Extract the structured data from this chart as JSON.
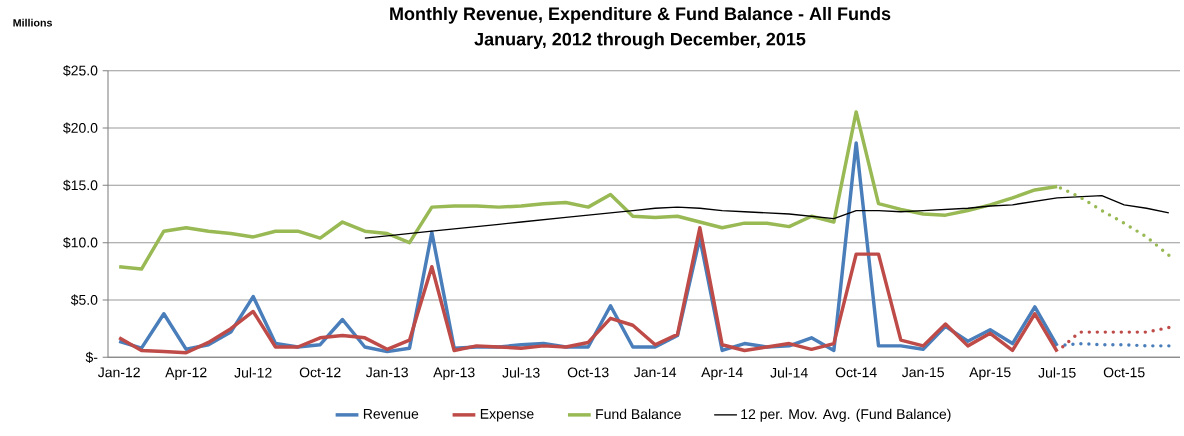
{
  "chart_data": {
    "type": "line",
    "title": "Monthly Revenue, Expenditure & Fund Balance - All Funds",
    "subtitle": "January, 2012 through December, 2015",
    "annotations": [
      "Millions"
    ],
    "categories": [
      "Jan-12",
      null,
      null,
      "Apr-12",
      null,
      null,
      "Jul-12",
      null,
      null,
      "Oct-12",
      null,
      null,
      "Jan-13",
      null,
      null,
      "Apr-13",
      null,
      null,
      "Jul-13",
      null,
      null,
      "Oct-13",
      null,
      null,
      "Jan-14",
      null,
      null,
      "Apr-14",
      null,
      null,
      "Jul-14",
      null,
      null,
      "Oct-14",
      null,
      null,
      "Jan-15",
      null,
      null,
      "Apr-15",
      null,
      null,
      "Jul-15",
      null,
      null,
      "Oct-15",
      null,
      null
    ],
    "series": [
      {
        "name": "Revenue",
        "color": "#4a7ebb",
        "values": [
          1.4,
          0.8,
          3.8,
          0.7,
          1.1,
          2.2,
          5.3,
          1.2,
          0.9,
          1.1,
          3.3,
          0.9,
          0.5,
          0.8,
          10.9,
          0.8,
          0.9,
          0.9,
          1.1,
          1.2,
          0.9,
          0.9,
          4.5,
          0.9,
          0.9,
          1.9,
          10.4,
          0.6,
          1.2,
          0.9,
          1.0,
          1.7,
          0.6,
          18.7,
          1.0,
          1.0,
          0.7,
          2.7,
          1.4,
          2.4,
          1.2,
          4.4,
          1.0,
          null,
          null,
          null,
          null,
          null
        ]
      },
      {
        "name": "Expense",
        "color": "#be4b48",
        "values": [
          1.7,
          0.6,
          0.5,
          0.4,
          1.3,
          2.5,
          4.0,
          0.9,
          0.9,
          1.7,
          1.9,
          1.7,
          0.7,
          1.5,
          7.9,
          0.6,
          1.0,
          0.9,
          0.8,
          1.0,
          0.9,
          1.3,
          3.4,
          2.8,
          1.1,
          2.0,
          11.3,
          1.1,
          0.6,
          0.9,
          1.2,
          0.7,
          1.2,
          9.0,
          9.0,
          1.5,
          1.0,
          2.9,
          1.0,
          2.1,
          0.6,
          3.8,
          0.5,
          null,
          null,
          null,
          null,
          null
        ]
      },
      {
        "name": "Fund Balance",
        "color": "#98b954",
        "values": [
          7.9,
          7.7,
          11.0,
          11.3,
          11.0,
          10.8,
          10.5,
          11.0,
          11.0,
          10.4,
          11.8,
          11.0,
          10.8,
          10.0,
          13.1,
          13.2,
          13.2,
          13.1,
          13.2,
          13.4,
          13.5,
          13.1,
          14.2,
          12.3,
          12.2,
          12.3,
          11.8,
          11.3,
          11.7,
          11.7,
          11.4,
          12.3,
          11.8,
          21.4,
          13.4,
          12.9,
          12.5,
          12.4,
          12.8,
          13.3,
          13.9,
          14.6,
          14.9,
          null,
          null,
          null,
          null,
          null
        ]
      },
      {
        "name": "12 per. Mov. Avg. (Fund Balance)",
        "type": "line",
        "color": "#000000",
        "values": [
          null,
          null,
          null,
          null,
          null,
          null,
          null,
          null,
          null,
          null,
          null,
          10.4,
          10.6,
          10.8,
          11.0,
          11.2,
          11.4,
          11.6,
          11.8,
          12.0,
          12.2,
          12.4,
          12.6,
          12.8,
          13.0,
          13.1,
          13.0,
          12.8,
          12.7,
          12.6,
          12.5,
          12.3,
          12.1,
          12.8,
          12.8,
          12.7,
          12.8,
          12.9,
          13.0,
          13.2,
          13.3,
          13.6,
          13.9,
          14.0,
          14.1,
          13.3,
          13.0,
          12.6
        ]
      },
      {
        "color": "#4a7ebb",
        "line_style": "dotted",
        "values": [
          null,
          null,
          null,
          null,
          null,
          null,
          null,
          null,
          null,
          null,
          null,
          null,
          null,
          null,
          null,
          null,
          null,
          null,
          null,
          null,
          null,
          null,
          null,
          null,
          null,
          null,
          null,
          null,
          null,
          null,
          null,
          null,
          null,
          null,
          null,
          null,
          null,
          null,
          null,
          null,
          null,
          null,
          1.0,
          1.2,
          1.1,
          1.1,
          1.0,
          1.0
        ]
      },
      {
        "color": "#be4b48",
        "line_style": "dotted",
        "values": [
          null,
          null,
          null,
          null,
          null,
          null,
          null,
          null,
          null,
          null,
          null,
          null,
          null,
          null,
          null,
          null,
          null,
          null,
          null,
          null,
          null,
          null,
          null,
          null,
          null,
          null,
          null,
          null,
          null,
          null,
          null,
          null,
          null,
          null,
          null,
          null,
          null,
          null,
          null,
          null,
          null,
          null,
          0.5,
          2.2,
          2.2,
          2.2,
          2.2,
          2.6
        ]
      },
      {
        "color": "#98b954",
        "line_style": "dotted",
        "values": [
          null,
          null,
          null,
          null,
          null,
          null,
          null,
          null,
          null,
          null,
          null,
          null,
          null,
          null,
          null,
          null,
          null,
          null,
          null,
          null,
          null,
          null,
          null,
          null,
          null,
          null,
          null,
          null,
          null,
          null,
          null,
          null,
          null,
          null,
          null,
          null,
          null,
          null,
          null,
          null,
          null,
          null,
          14.9,
          14.0,
          12.8,
          11.7,
          10.5,
          8.9
        ]
      }
    ],
    "ylim": [
      0,
      25
    ],
    "yticks": [
      {
        "value": 0,
        "label": "$-"
      },
      {
        "value": 5,
        "label": "$5.0"
      },
      {
        "value": 10,
        "label": "$10.0"
      },
      {
        "value": 15,
        "label": "$15.0"
      },
      {
        "value": 20,
        "label": "$20.0"
      },
      {
        "value": 25,
        "label": "$25.0"
      }
    ],
    "grid": "y",
    "legend": "bottom",
    "marker": "none"
  }
}
